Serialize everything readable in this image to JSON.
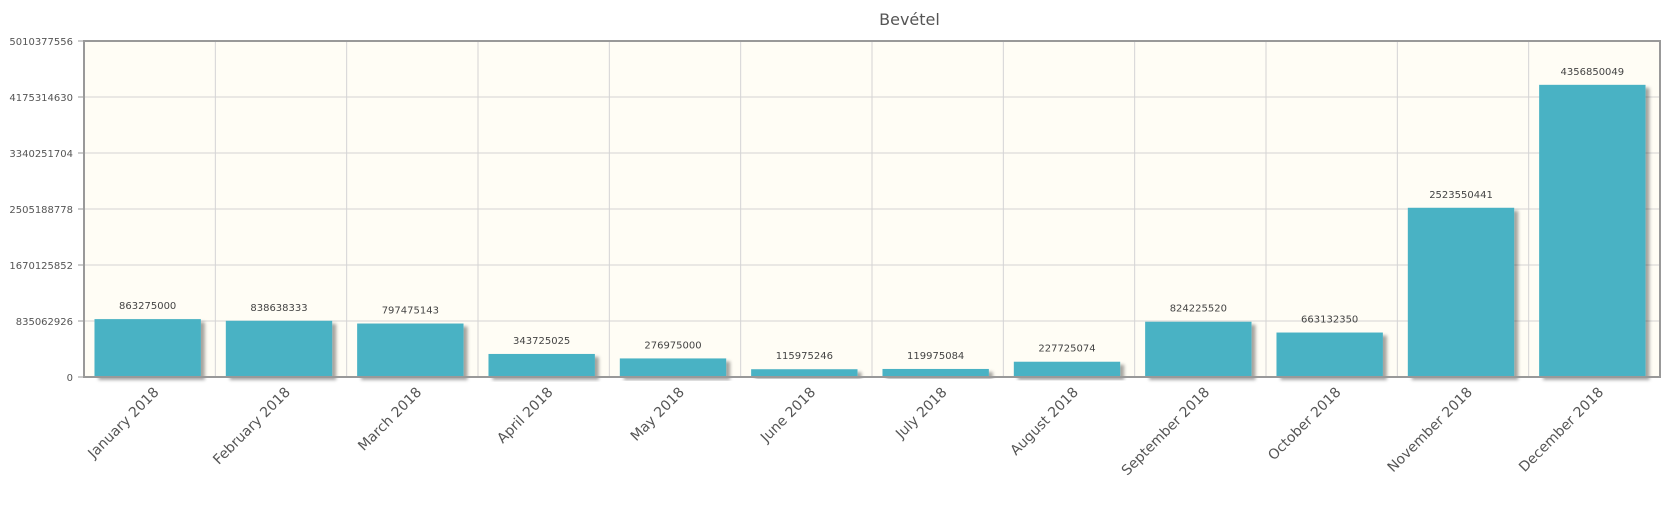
{
  "chart_data": {
    "type": "bar",
    "title": "Bevétel",
    "categories": [
      "January 2018",
      "February 2018",
      "March 2018",
      "April 2018",
      "May 2018",
      "June 2018",
      "July 2018",
      "August 2018",
      "September 2018",
      "October 2018",
      "November 2018",
      "December 2018"
    ],
    "values": [
      863275000,
      838638333,
      797475143,
      343725025,
      276975000,
      115975246,
      119975084,
      227725074,
      824225520,
      663132350,
      2523550441,
      4356850049
    ],
    "ylim": [
      0,
      5010377556
    ],
    "yticks": [
      0,
      835062926,
      1670125852,
      2505188778,
      3340251704,
      4175314630,
      5010377556
    ],
    "grid": true,
    "colors": {
      "bar": "#4ab2c4",
      "plot_bg": "#fffdf5",
      "grid": "#d4d4d4",
      "frame": "#999999"
    }
  }
}
